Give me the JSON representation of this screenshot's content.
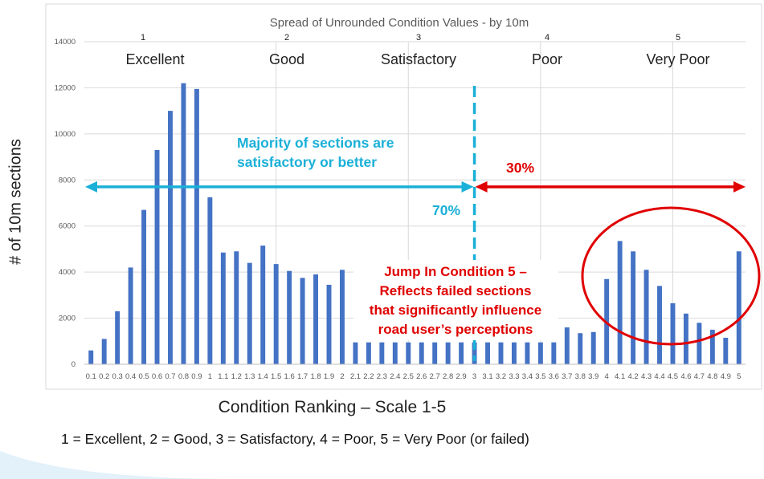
{
  "chart_data": {
    "type": "bar",
    "title": "Spread of Unrounded Condition Values - by 10m",
    "xlabel": "Condition Ranking – Scale 1-5",
    "ylabel": "# of 10m sections",
    "ylim": [
      0,
      14000
    ],
    "yticks": [
      0,
      2000,
      4000,
      6000,
      8000,
      10000,
      12000,
      14000
    ],
    "grid": true,
    "series_color": "#4472c4",
    "categories": [
      "0.1",
      "0.2",
      "0.3",
      "0.4",
      "0.5",
      "0.6",
      "0.7",
      "0.8",
      "0.9",
      "1",
      "1.1",
      "1.2",
      "1.3",
      "1.4",
      "1.5",
      "1.6",
      "1.7",
      "1.8",
      "1.9",
      "2",
      "2.1",
      "2.2",
      "2.3",
      "2.4",
      "2.5",
      "2.6",
      "2.7",
      "2.8",
      "2.9",
      "3",
      "3.1",
      "3.2",
      "3.3",
      "3.4",
      "3.5",
      "3.6",
      "3.7",
      "3.8",
      "3.9",
      "4",
      "4.1",
      "4.2",
      "4.3",
      "4.4",
      "4.5",
      "4.6",
      "4.7",
      "4.8",
      "4.9",
      "5"
    ],
    "values": [
      600,
      1100,
      2300,
      4200,
      6700,
      9300,
      11000,
      12200,
      11950,
      7250,
      4850,
      4900,
      4400,
      5150,
      4350,
      4050,
      3750,
      3900,
      3450,
      4100,
      950,
      950,
      950,
      950,
      950,
      950,
      950,
      950,
      950,
      950,
      950,
      950,
      950,
      950,
      950,
      950,
      1600,
      1350,
      1400,
      3700,
      5350,
      4900,
      4100,
      3400,
      2650,
      2200,
      1800,
      1500,
      1150,
      4900
    ],
    "condition_numbers": [
      "1",
      "2",
      "3",
      "4",
      "5"
    ],
    "condition_labels": [
      "Excellent",
      "Good",
      "Satisfactory",
      "Poor",
      "Very Poor"
    ],
    "annotations": {
      "left_text": "Majority of sections are satisfactory or better",
      "left_percent": "70%",
      "right_percent": "30%",
      "jump_text": "Jump In Condition 5 – Reflects failed sections that significantly influence road user’s perceptions",
      "threshold_value": 3,
      "arrow_level": 7700,
      "left_color": "#1ab0d8",
      "right_color": "#e00000"
    }
  },
  "footnote": "1 = Excellent, 2 = Good, 3 = Satisfactory, 4 = Poor, 5 = Very Poor (or failed)"
}
